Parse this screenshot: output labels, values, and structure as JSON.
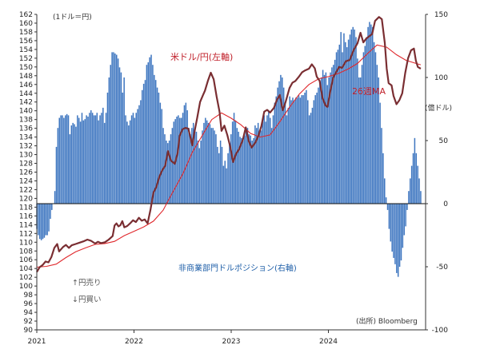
{
  "chart_data": {
    "type": "bar+line",
    "title": "",
    "left_axis": {
      "unit": "(1ドル＝円)",
      "min": 90,
      "max": 162,
      "step": 2
    },
    "right_axis": {
      "unit": "(億ドル)",
      "min": -100,
      "max": 150,
      "ticks": [
        150,
        100,
        50,
        0,
        -50,
        -100
      ]
    },
    "x_axis": {
      "labels": [
        "2021",
        "2022",
        "2023",
        "2024"
      ],
      "start": 2021.0,
      "end": 2025.0
    },
    "grid": false,
    "annotations": {
      "usdjpy": "米ドル/円(左軸)",
      "ma": "26週MA",
      "position": "非商業部門ドルポジション(右軸)",
      "yen_sell": "↑円売り",
      "yen_buy": "↓円買い",
      "source": "(出所) Bloomberg"
    },
    "colors": {
      "usdjpy": "#7a2e32",
      "ma": "#e0282c",
      "position": "#3e76c0"
    },
    "series": [
      {
        "name": "米ドル/円(左軸)",
        "axis": "left",
        "points": [
          [
            2021.0,
            103.2
          ],
          [
            2021.03,
            104.3
          ],
          [
            2021.06,
            104.8
          ],
          [
            2021.09,
            105.6
          ],
          [
            2021.12,
            105.4
          ],
          [
            2021.15,
            106.6
          ],
          [
            2021.18,
            108.7
          ],
          [
            2021.21,
            109.6
          ],
          [
            2021.23,
            107.9
          ],
          [
            2021.27,
            108.9
          ],
          [
            2021.3,
            109.4
          ],
          [
            2021.33,
            108.7
          ],
          [
            2021.36,
            109.3
          ],
          [
            2021.4,
            109.6
          ],
          [
            2021.44,
            109.9
          ],
          [
            2021.48,
            110.2
          ],
          [
            2021.52,
            110.6
          ],
          [
            2021.56,
            110.3
          ],
          [
            2021.6,
            109.7
          ],
          [
            2021.63,
            110.1
          ],
          [
            2021.66,
            109.8
          ],
          [
            2021.7,
            110.0
          ],
          [
            2021.74,
            110.6
          ],
          [
            2021.78,
            111.4
          ],
          [
            2021.8,
            113.8
          ],
          [
            2021.82,
            114.3
          ],
          [
            2021.84,
            113.6
          ],
          [
            2021.86,
            113.9
          ],
          [
            2021.88,
            114.8
          ],
          [
            2021.9,
            113.4
          ],
          [
            2021.93,
            113.7
          ],
          [
            2021.96,
            114.3
          ],
          [
            2021.99,
            115.0
          ],
          [
            2022.02,
            114.6
          ],
          [
            2022.05,
            115.6
          ],
          [
            2022.08,
            114.9
          ],
          [
            2022.11,
            115.2
          ],
          [
            2022.14,
            114.3
          ],
          [
            2022.17,
            117.5
          ],
          [
            2022.2,
            121.3
          ],
          [
            2022.23,
            122.6
          ],
          [
            2022.26,
            124.9
          ],
          [
            2022.29,
            126.4
          ],
          [
            2022.32,
            127.4
          ],
          [
            2022.35,
            130.8
          ],
          [
            2022.38,
            128.6
          ],
          [
            2022.42,
            127.9
          ],
          [
            2022.45,
            130.5
          ],
          [
            2022.47,
            134.3
          ],
          [
            2022.5,
            135.8
          ],
          [
            2022.53,
            136.1
          ],
          [
            2022.56,
            135.9
          ],
          [
            2022.6,
            132.1
          ],
          [
            2022.62,
            134.9
          ],
          [
            2022.65,
            138.4
          ],
          [
            2022.68,
            142.0
          ],
          [
            2022.71,
            143.6
          ],
          [
            2022.73,
            144.6
          ],
          [
            2022.76,
            146.8
          ],
          [
            2022.79,
            148.7
          ],
          [
            2022.82,
            147.2
          ],
          [
            2022.85,
            143.2
          ],
          [
            2022.88,
            139.8
          ],
          [
            2022.9,
            135.4
          ],
          [
            2022.93,
            136.6
          ],
          [
            2022.96,
            134.5
          ],
          [
            2022.99,
            131.8
          ],
          [
            2023.02,
            128.3
          ],
          [
            2023.05,
            130.2
          ],
          [
            2023.08,
            131.2
          ],
          [
            2023.12,
            133.4
          ],
          [
            2023.15,
            136.2
          ],
          [
            2023.18,
            133.1
          ],
          [
            2023.21,
            131.6
          ],
          [
            2023.25,
            132.8
          ],
          [
            2023.28,
            134.3
          ],
          [
            2023.31,
            136.5
          ],
          [
            2023.34,
            139.8
          ],
          [
            2023.37,
            140.2
          ],
          [
            2023.4,
            139.6
          ],
          [
            2023.44,
            140.7
          ],
          [
            2023.47,
            142.5
          ],
          [
            2023.5,
            143.6
          ],
          [
            2023.53,
            140.1
          ],
          [
            2023.56,
            142.0
          ],
          [
            2023.6,
            145.2
          ],
          [
            2023.63,
            146.4
          ],
          [
            2023.66,
            146.8
          ],
          [
            2023.7,
            147.9
          ],
          [
            2023.73,
            148.8
          ],
          [
            2023.76,
            149.2
          ],
          [
            2023.8,
            149.6
          ],
          [
            2023.83,
            150.6
          ],
          [
            2023.86,
            149.7
          ],
          [
            2023.88,
            147.8
          ],
          [
            2023.91,
            146.8
          ],
          [
            2023.94,
            142.9
          ],
          [
            2023.97,
            141.2
          ],
          [
            2023.99,
            140.9
          ],
          [
            2024.02,
            144.5
          ],
          [
            2024.05,
            147.6
          ],
          [
            2024.08,
            148.8
          ],
          [
            2024.11,
            150.0
          ],
          [
            2024.14,
            149.8
          ],
          [
            2024.18,
            151.3
          ],
          [
            2024.22,
            151.6
          ],
          [
            2024.26,
            153.9
          ],
          [
            2024.3,
            155.4
          ],
          [
            2024.33,
            157.8
          ],
          [
            2024.36,
            155.6
          ],
          [
            2024.39,
            156.5
          ],
          [
            2024.42,
            157.0
          ],
          [
            2024.45,
            157.5
          ],
          [
            2024.48,
            160.5
          ],
          [
            2024.52,
            161.4
          ],
          [
            2024.55,
            160.9
          ],
          [
            2024.58,
            155.5
          ],
          [
            2024.6,
            149.6
          ],
          [
            2024.62,
            146.3
          ],
          [
            2024.65,
            145.8
          ],
          [
            2024.67,
            143.4
          ],
          [
            2024.7,
            141.5
          ],
          [
            2024.73,
            142.4
          ],
          [
            2024.76,
            144.0
          ],
          [
            2024.79,
            148.6
          ],
          [
            2024.82,
            152.0
          ],
          [
            2024.85,
            153.8
          ],
          [
            2024.88,
            154.2
          ],
          [
            2024.9,
            151.4
          ],
          [
            2024.92,
            150.0
          ],
          [
            2024.95,
            149.6
          ]
        ]
      },
      {
        "name": "26週MA",
        "axis": "left",
        "points": [
          [
            2021.0,
            104.3
          ],
          [
            2021.1,
            104.5
          ],
          [
            2021.2,
            105.0
          ],
          [
            2021.3,
            106.5
          ],
          [
            2021.4,
            107.8
          ],
          [
            2021.5,
            108.7
          ],
          [
            2021.6,
            109.5
          ],
          [
            2021.7,
            109.7
          ],
          [
            2021.8,
            110.2
          ],
          [
            2021.9,
            111.5
          ],
          [
            2022.0,
            112.5
          ],
          [
            2022.1,
            113.5
          ],
          [
            2022.2,
            114.8
          ],
          [
            2022.3,
            117.3
          ],
          [
            2022.4,
            121.5
          ],
          [
            2022.5,
            125.5
          ],
          [
            2022.6,
            130.5
          ],
          [
            2022.7,
            134.3
          ],
          [
            2022.8,
            138.0
          ],
          [
            2022.9,
            139.5
          ],
          [
            2023.0,
            138.3
          ],
          [
            2023.1,
            136.8
          ],
          [
            2023.2,
            134.8
          ],
          [
            2023.3,
            134.0
          ],
          [
            2023.4,
            134.5
          ],
          [
            2023.5,
            137.5
          ],
          [
            2023.6,
            140.8
          ],
          [
            2023.7,
            143.8
          ],
          [
            2023.8,
            146.0
          ],
          [
            2023.9,
            147.3
          ],
          [
            2024.0,
            147.8
          ],
          [
            2024.1,
            148.5
          ],
          [
            2024.2,
            149.5
          ],
          [
            2024.3,
            150.8
          ],
          [
            2024.4,
            153.0
          ],
          [
            2024.5,
            155.0
          ],
          [
            2024.6,
            154.5
          ],
          [
            2024.7,
            152.8
          ],
          [
            2024.8,
            151.5
          ],
          [
            2024.9,
            150.8
          ],
          [
            2024.95,
            150.5
          ]
        ]
      },
      {
        "name": "非商業部門ドルポジション(右軸)",
        "axis": "right",
        "type": "bar",
        "x_start": 2021.0,
        "x_end": 2024.95,
        "values": [
          -20,
          -25,
          -28,
          -29,
          -28,
          -27,
          -25,
          -25,
          -22,
          -12,
          -5,
          0,
          10,
          45,
          60,
          68,
          70,
          70,
          68,
          70,
          71,
          70,
          55,
          62,
          64,
          63,
          61,
          70,
          68,
          65,
          72,
          66,
          67,
          70,
          69,
          72,
          74,
          72,
          70,
          70,
          72,
          66,
          70,
          72,
          76,
          64,
          72,
          88,
          100,
          110,
          120,
          120,
          119,
          118,
          115,
          108,
          104,
          88,
          100,
          70,
          65,
          62,
          66,
          70,
          72,
          68,
          72,
          75,
          78,
          82,
          90,
          95,
          98,
          110,
          112,
          116,
          118,
          110,
          102,
          98,
          92,
          88,
          80,
          75,
          60,
          55,
          50,
          48,
          50,
          55,
          60,
          65,
          67,
          69,
          70,
          68,
          68,
          72,
          78,
          80,
          74,
          60,
          55,
          60,
          64,
          58,
          57,
          50,
          44,
          50,
          58,
          64,
          68,
          66,
          64,
          63,
          60,
          60,
          58,
          55,
          45,
          40,
          50,
          45,
          30,
          34,
          28,
          40,
          48,
          55,
          65,
          72,
          66,
          60,
          57,
          53,
          52,
          50,
          54,
          60,
          60,
          55,
          54,
          50,
          52,
          62,
          60,
          64,
          58,
          58,
          65,
          70,
          65,
          70,
          74,
          68,
          60,
          70,
          80,
          85,
          92,
          97,
          102,
          100,
          92,
          80,
          70,
          76,
          85,
          82,
          84,
          82,
          84,
          84,
          86,
          84,
          86,
          86,
          88,
          90,
          82,
          70,
          72,
          76,
          82,
          86,
          88,
          92,
          96,
          100,
          106,
          102,
          104,
          94,
          100,
          104,
          108,
          110,
          114,
          120,
          122,
          126,
          136,
          120,
          135,
          128,
          124,
          130,
          134,
          138,
          140,
          138,
          132,
          115,
          100,
          100,
          110,
          120,
          125,
          132,
          140,
          144,
          142,
          140,
          128,
          120,
          110,
          100,
          80,
          60,
          40,
          20,
          5,
          -5,
          -20,
          -30,
          -38,
          -43,
          -48,
          -55,
          -58,
          -50,
          -45,
          -35,
          -25,
          -18,
          -5,
          10,
          20,
          30,
          40,
          52,
          40,
          30,
          20,
          10
        ]
      }
    ]
  }
}
